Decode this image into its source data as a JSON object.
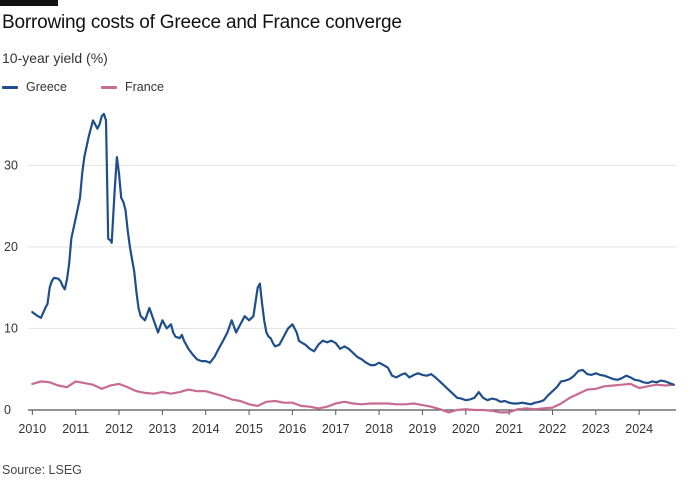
{
  "header": {
    "title": "Borrowing costs of Greece and France converge",
    "subtitle": "10-year yield (%)"
  },
  "legend": {
    "items": [
      {
        "label": "Greece",
        "color": "#1f4e8c"
      },
      {
        "label": "France",
        "color": "#c76b92"
      }
    ]
  },
  "footer": {
    "source": "Source: LSEG"
  },
  "chart_data": {
    "type": "line",
    "title": "Borrowing costs of Greece and France converge",
    "subtitle": "10-year yield (%)",
    "xlabel": "",
    "ylabel": "10-year yield (%)",
    "xlim": [
      2009.9,
      2024.85
    ],
    "ylim": [
      0,
      38
    ],
    "x_ticks": [
      2010,
      2011,
      2012,
      2013,
      2014,
      2015,
      2016,
      2017,
      2018,
      2019,
      2020,
      2021,
      2022,
      2023,
      2024
    ],
    "y_ticks": [
      0,
      10,
      20,
      30
    ],
    "grid": "horizontal",
    "legend_position": "top-left",
    "series": [
      {
        "name": "Greece",
        "color": "#1f4e8c",
        "x": [
          2010.0,
          2010.1,
          2010.2,
          2010.3,
          2010.35,
          2010.4,
          2010.45,
          2010.5,
          2010.6,
          2010.65,
          2010.7,
          2010.75,
          2010.8,
          2010.85,
          2010.9,
          2011.0,
          2011.1,
          2011.15,
          2011.2,
          2011.3,
          2011.4,
          2011.5,
          2011.55,
          2011.6,
          2011.65,
          2011.7,
          2011.75,
          2011.8,
          2011.83,
          2011.9,
          2011.95,
          2012.0,
          2012.05,
          2012.1,
          2012.15,
          2012.2,
          2012.25,
          2012.3,
          2012.35,
          2012.4,
          2012.45,
          2012.5,
          2012.6,
          2012.7,
          2012.8,
          2012.9,
          2013.0,
          2013.1,
          2013.2,
          2013.25,
          2013.3,
          2013.4,
          2013.45,
          2013.5,
          2013.6,
          2013.7,
          2013.8,
          2013.9,
          2014.0,
          2014.1,
          2014.2,
          2014.3,
          2014.4,
          2014.5,
          2014.6,
          2014.7,
          2014.8,
          2014.9,
          2015.0,
          2015.1,
          2015.2,
          2015.25,
          2015.3,
          2015.35,
          2015.4,
          2015.45,
          2015.5,
          2015.55,
          2015.6,
          2015.7,
          2015.8,
          2015.9,
          2016.0,
          2016.1,
          2016.15,
          2016.2,
          2016.3,
          2016.4,
          2016.5,
          2016.6,
          2016.7,
          2016.8,
          2016.9,
          2017.0,
          2017.1,
          2017.2,
          2017.3,
          2017.4,
          2017.5,
          2017.6,
          2017.7,
          2017.8,
          2017.9,
          2018.0,
          2018.1,
          2018.2,
          2018.3,
          2018.4,
          2018.5,
          2018.6,
          2018.7,
          2018.8,
          2018.9,
          2019.0,
          2019.1,
          2019.2,
          2019.3,
          2019.4,
          2019.5,
          2019.6,
          2019.7,
          2019.8,
          2019.9,
          2020.0,
          2020.1,
          2020.2,
          2020.3,
          2020.4,
          2020.5,
          2020.6,
          2020.7,
          2020.8,
          2020.9,
          2021.0,
          2021.1,
          2021.2,
          2021.3,
          2021.4,
          2021.5,
          2021.6,
          2021.7,
          2021.8,
          2021.9,
          2022.0,
          2022.1,
          2022.2,
          2022.3,
          2022.4,
          2022.5,
          2022.6,
          2022.7,
          2022.8,
          2022.9,
          2023.0,
          2023.1,
          2023.2,
          2023.3,
          2023.4,
          2023.5,
          2023.6,
          2023.7,
          2023.8,
          2023.9,
          2024.0,
          2024.1,
          2024.2,
          2024.3,
          2024.4,
          2024.5,
          2024.6,
          2024.7,
          2024.8
        ],
        "y": [
          12.0,
          11.6,
          11.3,
          12.5,
          13.0,
          15.0,
          15.8,
          16.2,
          16.1,
          15.8,
          15.2,
          14.8,
          16.0,
          18.0,
          21.0,
          23.5,
          26.0,
          29.0,
          31.0,
          33.5,
          35.5,
          34.5,
          35.0,
          36.0,
          36.3,
          35.5,
          21.0,
          20.8,
          20.5,
          27.0,
          31.0,
          29.0,
          26.0,
          25.5,
          24.5,
          22.0,
          20.0,
          18.5,
          17.0,
          14.5,
          12.5,
          11.5,
          11.0,
          12.5,
          11.0,
          9.5,
          11.0,
          10.0,
          10.5,
          9.5,
          9.0,
          8.8,
          9.2,
          8.5,
          7.5,
          6.8,
          6.2,
          6.0,
          6.0,
          5.8,
          6.5,
          7.5,
          8.5,
          9.5,
          11.0,
          9.5,
          10.5,
          11.5,
          11.0,
          11.5,
          15.0,
          15.5,
          13.0,
          11.0,
          9.5,
          9.0,
          8.8,
          8.2,
          7.8,
          8.0,
          9.0,
          10.0,
          10.5,
          9.5,
          8.5,
          8.3,
          8.0,
          7.5,
          7.2,
          8.0,
          8.5,
          8.3,
          8.5,
          8.2,
          7.5,
          7.8,
          7.5,
          7.0,
          6.5,
          6.2,
          5.8,
          5.5,
          5.5,
          5.8,
          5.5,
          5.2,
          4.2,
          4.0,
          4.3,
          4.5,
          4.0,
          4.3,
          4.5,
          4.3,
          4.2,
          4.4,
          4.0,
          3.5,
          3.0,
          2.5,
          2.0,
          1.5,
          1.4,
          1.2,
          1.3,
          1.5,
          2.2,
          1.5,
          1.2,
          1.4,
          1.3,
          1.0,
          1.1,
          0.9,
          0.8,
          0.8,
          0.9,
          0.8,
          0.7,
          0.9,
          1.0,
          1.2,
          1.8,
          2.3,
          2.8,
          3.5,
          3.6,
          3.8,
          4.2,
          4.8,
          4.9,
          4.4,
          4.3,
          4.5,
          4.3,
          4.2,
          4.0,
          3.8,
          3.7,
          3.9,
          4.2,
          4.0,
          3.7,
          3.6,
          3.4,
          3.3,
          3.5,
          3.4,
          3.6,
          3.5,
          3.3,
          3.1
        ]
      },
      {
        "name": "France",
        "color": "#c76b92",
        "x": [
          2010.0,
          2010.2,
          2010.4,
          2010.6,
          2010.8,
          2011.0,
          2011.2,
          2011.4,
          2011.6,
          2011.8,
          2012.0,
          2012.2,
          2012.4,
          2012.6,
          2012.8,
          2013.0,
          2013.2,
          2013.4,
          2013.6,
          2013.8,
          2014.0,
          2014.2,
          2014.4,
          2014.6,
          2014.8,
          2015.0,
          2015.2,
          2015.4,
          2015.6,
          2015.8,
          2016.0,
          2016.2,
          2016.4,
          2016.6,
          2016.8,
          2017.0,
          2017.2,
          2017.4,
          2017.6,
          2017.8,
          2018.0,
          2018.2,
          2018.4,
          2018.6,
          2018.8,
          2019.0,
          2019.2,
          2019.4,
          2019.6,
          2019.8,
          2020.0,
          2020.2,
          2020.4,
          2020.6,
          2020.8,
          2021.0,
          2021.2,
          2021.4,
          2021.6,
          2021.8,
          2022.0,
          2022.2,
          2022.4,
          2022.6,
          2022.8,
          2023.0,
          2023.2,
          2023.4,
          2023.6,
          2023.8,
          2024.0,
          2024.2,
          2024.4,
          2024.6,
          2024.8
        ],
        "y": [
          3.2,
          3.5,
          3.4,
          3.0,
          2.8,
          3.5,
          3.3,
          3.1,
          2.6,
          3.0,
          3.2,
          2.8,
          2.3,
          2.1,
          2.0,
          2.2,
          2.0,
          2.2,
          2.5,
          2.3,
          2.3,
          2.0,
          1.7,
          1.3,
          1.1,
          0.7,
          0.5,
          1.0,
          1.1,
          0.9,
          0.9,
          0.5,
          0.4,
          0.2,
          0.4,
          0.8,
          1.0,
          0.8,
          0.7,
          0.8,
          0.8,
          0.8,
          0.7,
          0.7,
          0.8,
          0.6,
          0.4,
          0.1,
          -0.3,
          0.0,
          0.1,
          0.0,
          0.0,
          -0.1,
          -0.3,
          -0.3,
          0.1,
          0.2,
          0.1,
          0.2,
          0.3,
          0.8,
          1.5,
          2.0,
          2.5,
          2.6,
          2.9,
          3.0,
          3.1,
          3.2,
          2.7,
          2.9,
          3.1,
          3.0,
          3.1
        ]
      }
    ]
  }
}
